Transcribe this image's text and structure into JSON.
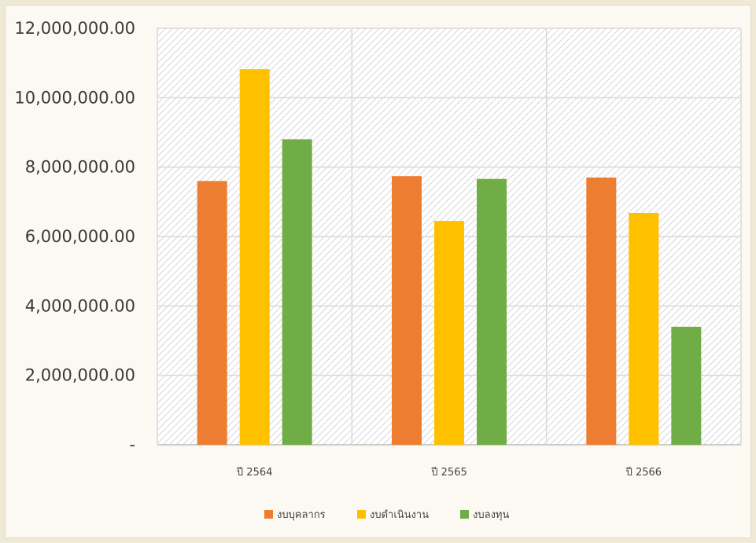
{
  "chart_data": {
    "type": "bar",
    "title": "",
    "xlabel": "",
    "ylabel": "",
    "categories": [
      "ปี 2564",
      "ปี 2565",
      "ปี 2566"
    ],
    "ylim": [
      0,
      12000000
    ],
    "yticks": [
      0,
      2000000,
      4000000,
      6000000,
      8000000,
      10000000,
      12000000
    ],
    "ytick_labels": [
      "-",
      "2,000,000.00",
      "4,000,000.00",
      "6,000,000.00",
      "8,000,000.00",
      "10,000,000.00",
      "12,000,000.00"
    ],
    "grid": true,
    "legend_position": "bottom",
    "series": [
      {
        "name": "งบบุคลากร",
        "color": "#ed7d31",
        "values": [
          7600000,
          7740000,
          7700000
        ]
      },
      {
        "name": "งบดำเนินงาน",
        "color": "#ffc000",
        "values": [
          10820000,
          6450000,
          6680000
        ]
      },
      {
        "name": "งบลงทุน",
        "color": "#70ad47",
        "values": [
          8800000,
          7660000,
          3400000
        ]
      }
    ]
  }
}
